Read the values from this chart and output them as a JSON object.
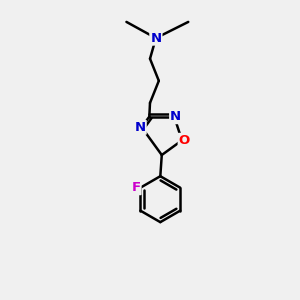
{
  "bg_color": "#f0f0f0",
  "bond_color": "#000000",
  "N_color": "#0000cc",
  "O_color": "#ff0000",
  "F_color": "#cc00cc",
  "line_width": 1.8,
  "fig_size": [
    3.0,
    3.0
  ],
  "dpi": 100,
  "xlim": [
    0,
    10
  ],
  "ylim": [
    0,
    10
  ]
}
